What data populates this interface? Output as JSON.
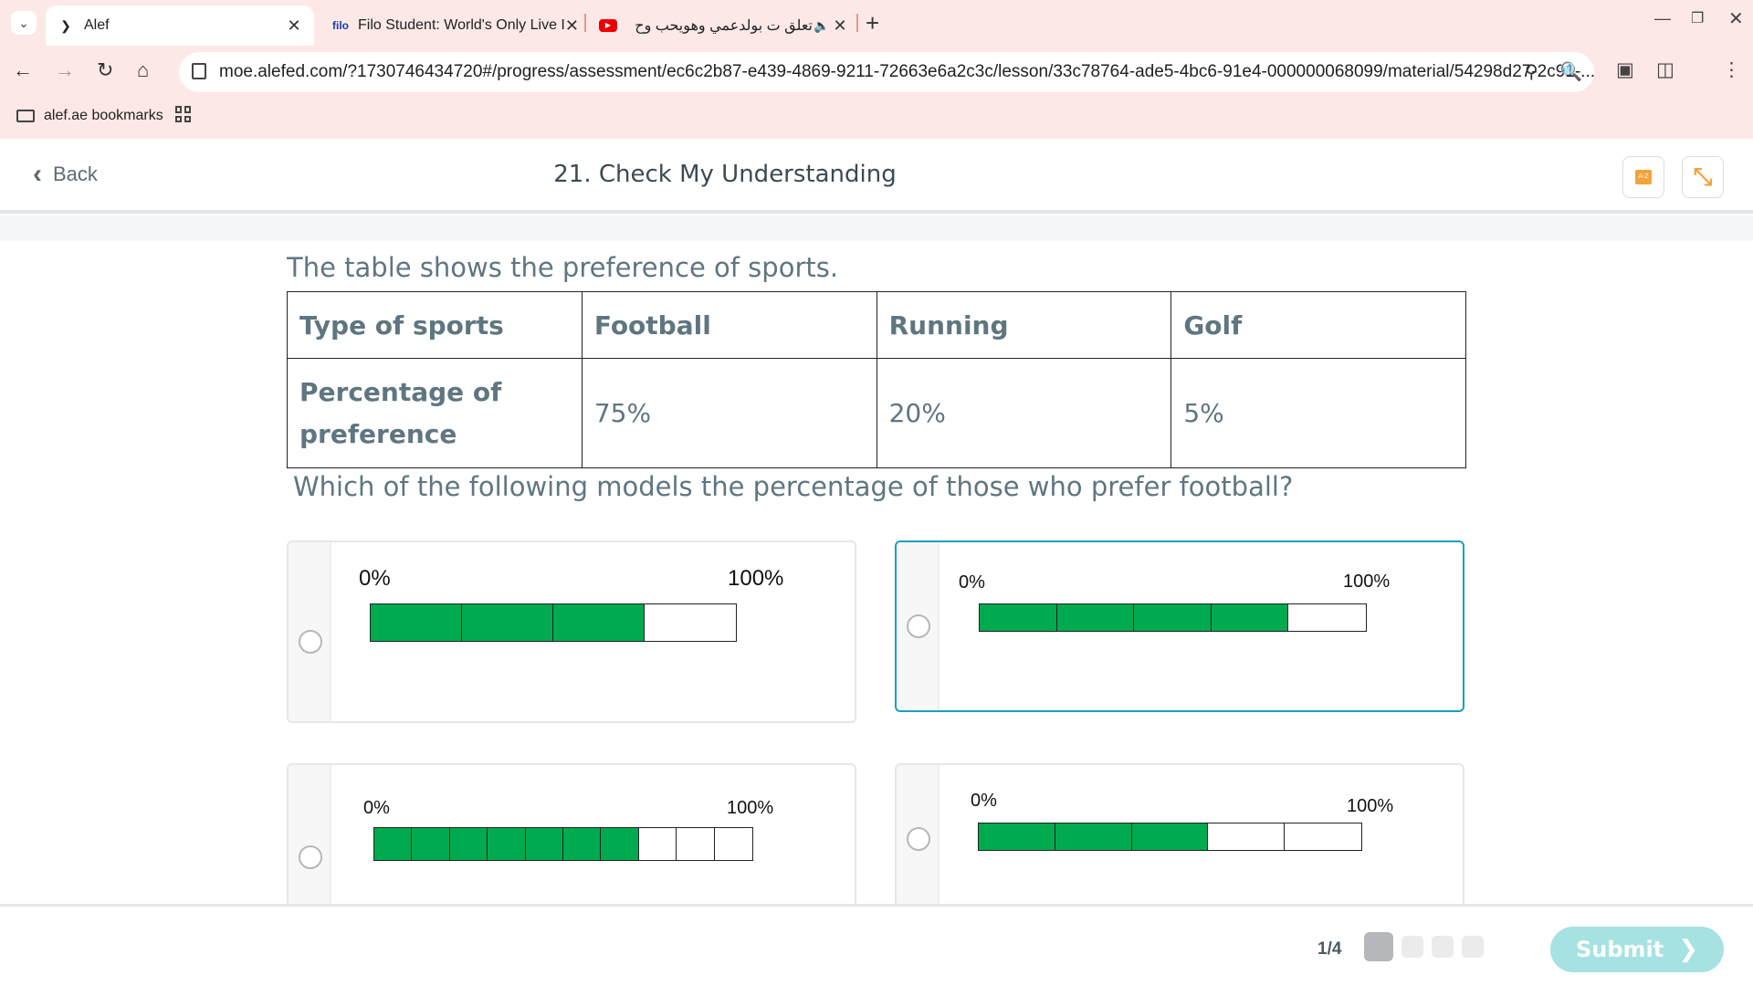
{
  "browser": {
    "tabs": [
      {
        "title": "Alef",
        "favicon": "alef-logo-icon",
        "active": true
      },
      {
        "title": "Filo Student: World's Only Live I",
        "favicon_text": "filo",
        "active": false
      },
      {
        "title": "تعلق ت بولدعمي وهويحب وح",
        "favicon": "youtube-icon",
        "audio": true,
        "active": false
      }
    ],
    "url": "moe.alefed.com/?1730746434720#/progress/assessment/ec6c2b87-e439-4869-9211-72663e6a2c3c/lesson/33c78764-ade5-4bc6-91e4-000000068099/material/54298d27-2c91-...",
    "bookmark": "alef.ae bookmarks"
  },
  "header": {
    "back_label": "Back",
    "title": "21. Check My Understanding"
  },
  "question": {
    "intro": "The table shows the preference of sports.",
    "table": {
      "header": [
        "Type of sports",
        "Football",
        "Running",
        "Golf"
      ],
      "row_label": "Percentage of preference",
      "row_values": [
        "75%",
        "20%",
        "5%"
      ]
    },
    "prompt": "Which of the following models the percentage of those who prefer football?"
  },
  "options": [
    {
      "left_label": "0%",
      "right_label": "100%",
      "segments": 4,
      "filled": 3,
      "fill_fraction": 0.75,
      "selected": false
    },
    {
      "left_label": "0%",
      "right_label": "100%",
      "segments": 5,
      "filled": 4,
      "fill_fraction": 0.8,
      "selected": false,
      "highlighted": true
    },
    {
      "left_label": "0%",
      "right_label": "100%",
      "segments": 10,
      "filled": 7,
      "fill_fraction": 0.7,
      "selected": false
    },
    {
      "left_label": "0%",
      "right_label": "100%",
      "segments": 5,
      "filled": 3,
      "fill_fraction": 0.6,
      "selected": false
    }
  ],
  "colors": {
    "bar_fill": "#00aa4f",
    "selected_border": "#1a9fc1",
    "submit": "#a6e2e2"
  },
  "footer": {
    "counter": "1/4",
    "pages": 4,
    "current_page": 1,
    "submit_label": "Submit"
  }
}
